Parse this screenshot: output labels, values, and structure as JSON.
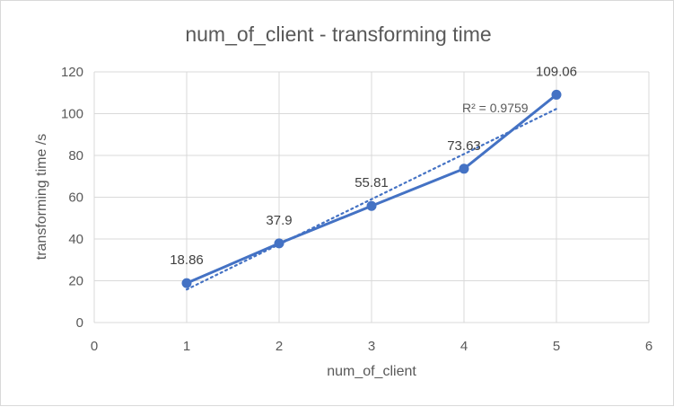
{
  "chart_data": {
    "type": "scatter",
    "title": "num_of_client - transforming time",
    "xlabel": "num_of_client",
    "ylabel": "transforming time /s",
    "xlim": [
      0,
      6
    ],
    "ylim": [
      0,
      120
    ],
    "x_ticks": [
      0,
      1,
      2,
      3,
      4,
      5,
      6
    ],
    "y_ticks": [
      0,
      20,
      40,
      60,
      80,
      100,
      120
    ],
    "grid": true,
    "series": [
      {
        "x": [
          1,
          2,
          3,
          4,
          5
        ],
        "y": [
          18.86,
          37.9,
          55.81,
          73.63,
          109.06
        ],
        "labels": [
          "18.86",
          "37.9",
          "55.81",
          "73.63",
          "109.06"
        ],
        "color": "#4472c4",
        "style": "line-with-markers"
      }
    ],
    "trendline": {
      "type": "linear",
      "label": "R² = 0.9759",
      "x_range": [
        1,
        5
      ],
      "color": "#4472c4",
      "style": "dotted"
    }
  }
}
